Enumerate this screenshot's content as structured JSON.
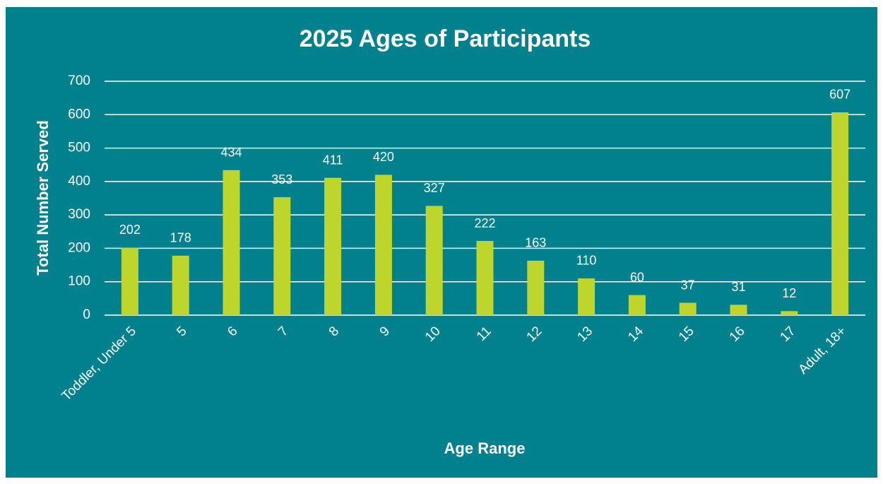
{
  "chart_data": {
    "type": "bar",
    "title": "2025 Ages of Participants",
    "x_label": "Age Range",
    "y_label": "Total Number Served",
    "categories": [
      "Toddler, Under 5",
      "5",
      "6",
      "7",
      "8",
      "9",
      "10",
      "11",
      "12",
      "13",
      "14",
      "15",
      "16",
      "17",
      "Adult, 18+"
    ],
    "values": [
      202,
      178,
      434,
      353,
      411,
      420,
      327,
      222,
      163,
      110,
      60,
      37,
      31,
      12,
      607
    ],
    "color": "#bed62b",
    "ylim": [
      0,
      700
    ],
    "yticks": [
      0,
      100,
      200,
      300,
      400,
      500,
      600,
      700
    ],
    "grid": true
  }
}
